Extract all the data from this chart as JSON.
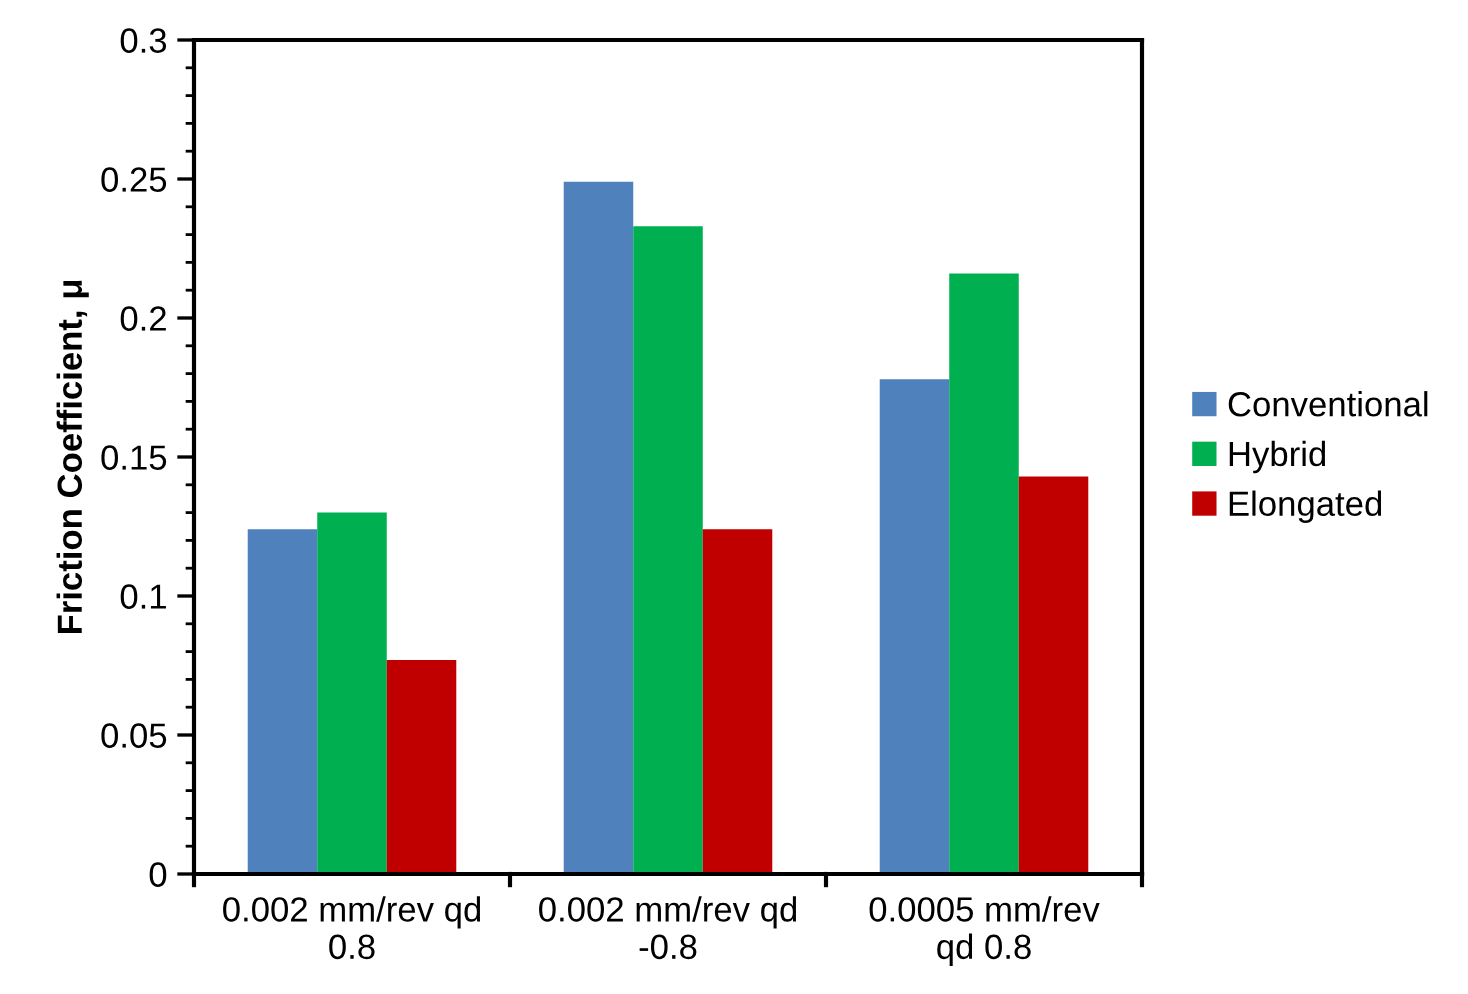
{
  "chart_data": {
    "type": "bar",
    "ylabel": "Friction Coefficient, μ",
    "categories": [
      "0.002 mm/rev qd\n0.8",
      "0.002 mm/rev qd\n-0.8",
      "0.0005 mm/rev\nqd 0.8"
    ],
    "series": [
      {
        "name": "Conventional",
        "color": "#4f81bd",
        "values": [
          0.124,
          0.249,
          0.178
        ]
      },
      {
        "name": "Hybrid",
        "color": "#00b050",
        "values": [
          0.13,
          0.233,
          0.216
        ]
      },
      {
        "name": "Elongated",
        "color": "#c00000",
        "values": [
          0.077,
          0.124,
          0.143
        ]
      }
    ],
    "ylim": [
      0,
      0.3
    ],
    "yticks": [
      0,
      0.05,
      0.1,
      0.15,
      0.2,
      0.25,
      0.3
    ],
    "grid": false,
    "legend": "right"
  }
}
